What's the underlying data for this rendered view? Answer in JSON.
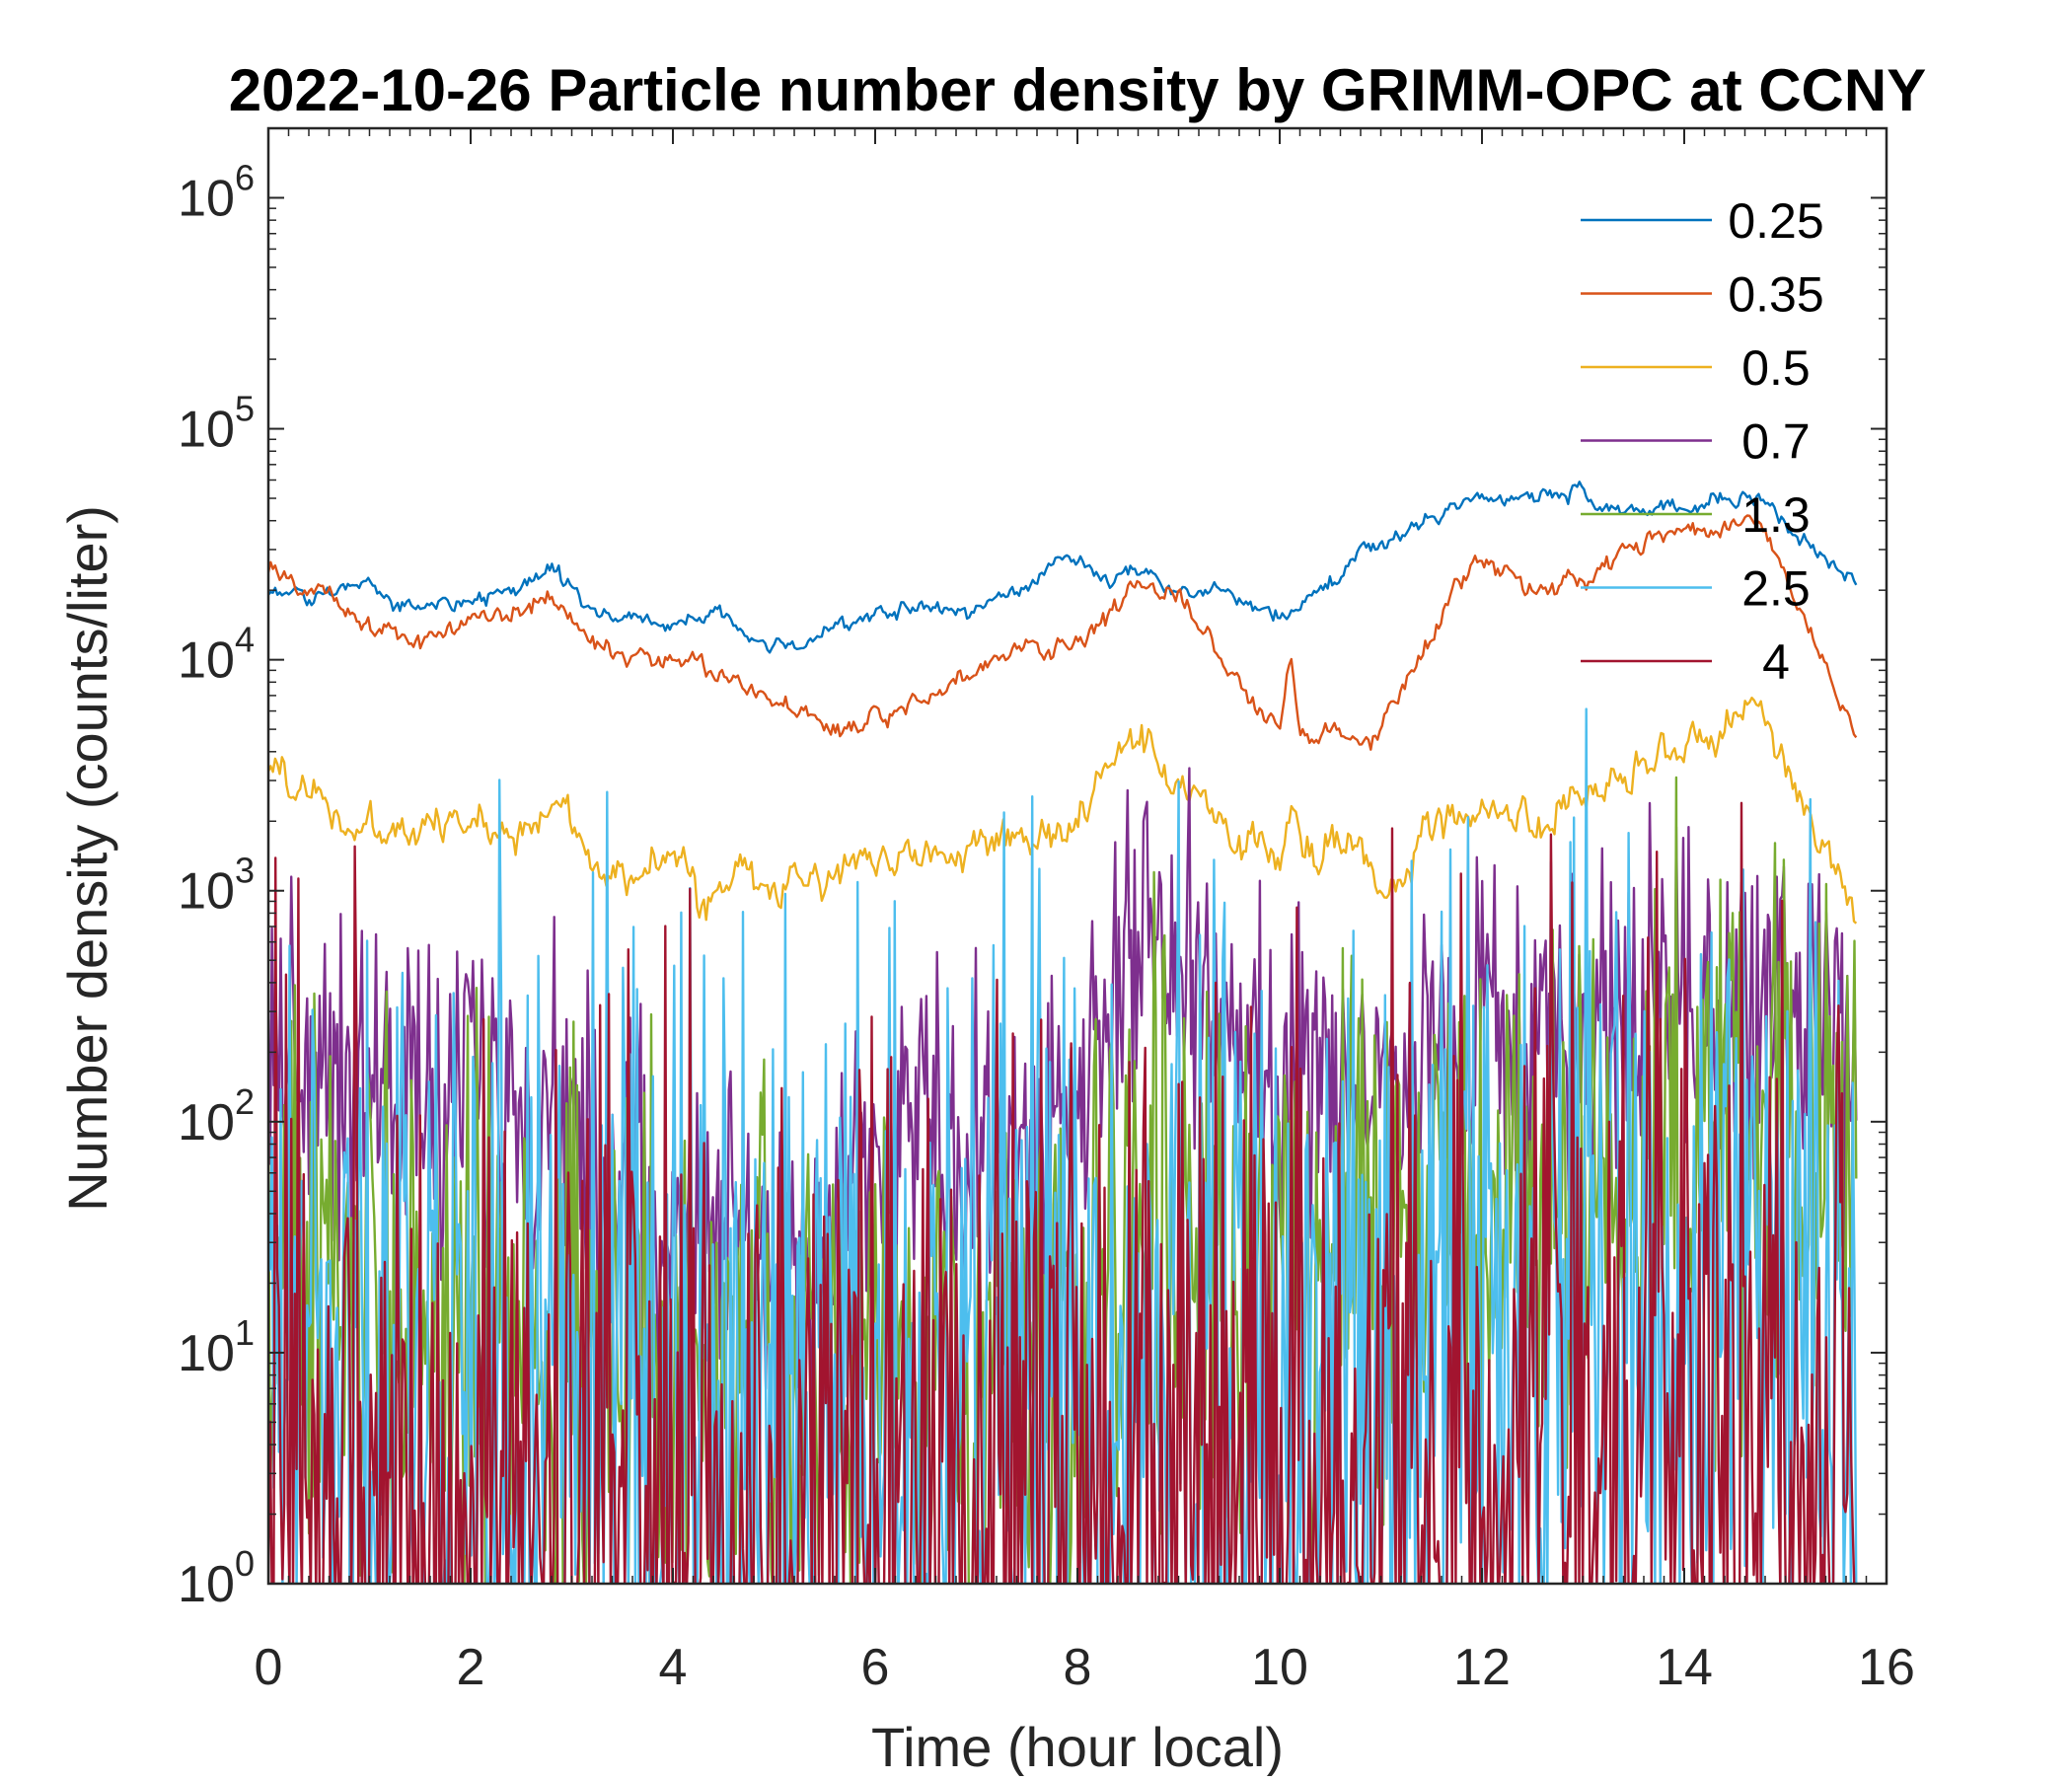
{
  "chart_data": {
    "type": "line",
    "title": "2022-10-26 Particle number density by GRIMM-OPC at CCNY",
    "xlabel": "Time (hour local)",
    "ylabel": "Number density (counts/liter)",
    "xlim": [
      0,
      16
    ],
    "ylim": [
      1,
      2000000
    ],
    "yscale": "log",
    "xticks": [
      0,
      2,
      4,
      6,
      8,
      10,
      12,
      14,
      16
    ],
    "xtick_labels": [
      "0",
      "2",
      "4",
      "6",
      "8",
      "10",
      "12",
      "14",
      "16"
    ],
    "yticks": [
      1,
      10,
      100,
      1000,
      10000,
      100000,
      1000000
    ],
    "ytick_base": "10",
    "ytick_exponents": [
      "0",
      "1",
      "2",
      "3",
      "4",
      "5",
      "6"
    ],
    "legend_position": "top-right",
    "series": [
      {
        "name": "0.25",
        "color": "#0072BD",
        "noise": 0.04,
        "points": [
          [
            0,
            20000
          ],
          [
            0.5,
            18000
          ],
          [
            0.9,
            23000
          ],
          [
            1.3,
            17000
          ],
          [
            2.0,
            18000
          ],
          [
            2.5,
            20000
          ],
          [
            2.8,
            25000
          ],
          [
            3.1,
            17000
          ],
          [
            3.6,
            15000
          ],
          [
            4.0,
            14000
          ],
          [
            4.4,
            16000
          ],
          [
            4.7,
            13000
          ],
          [
            5.0,
            11000
          ],
          [
            5.5,
            13000
          ],
          [
            6.0,
            16000
          ],
          [
            6.5,
            17000
          ],
          [
            7.0,
            16000
          ],
          [
            7.5,
            22000
          ],
          [
            7.9,
            28000
          ],
          [
            8.3,
            22000
          ],
          [
            8.7,
            24000
          ],
          [
            9.0,
            20000
          ],
          [
            9.5,
            19000
          ],
          [
            10.0,
            15000
          ],
          [
            10.3,
            18000
          ],
          [
            10.7,
            26000
          ],
          [
            11.0,
            32000
          ],
          [
            11.5,
            40000
          ],
          [
            12.0,
            50000
          ],
          [
            12.5,
            52000
          ],
          [
            13.0,
            52000
          ],
          [
            13.5,
            46000
          ],
          [
            14.0,
            45000
          ],
          [
            14.5,
            52000
          ],
          [
            14.8,
            48000
          ],
          [
            15.2,
            32000
          ],
          [
            15.7,
            21000
          ]
        ]
      },
      {
        "name": "0.35",
        "color": "#D95319",
        "noise": 0.05,
        "points": [
          [
            0,
            24000
          ],
          [
            0.5,
            20000
          ],
          [
            1.0,
            14000
          ],
          [
            1.5,
            12000
          ],
          [
            2.0,
            15000
          ],
          [
            2.5,
            16000
          ],
          [
            2.8,
            19000
          ],
          [
            3.2,
            12000
          ],
          [
            3.7,
            10000
          ],
          [
            4.0,
            11000
          ],
          [
            4.3,
            9000
          ],
          [
            4.7,
            8000
          ],
          [
            5.0,
            6500
          ],
          [
            5.6,
            5000
          ],
          [
            6.0,
            5500
          ],
          [
            6.5,
            7000
          ],
          [
            7.0,
            9000
          ],
          [
            7.5,
            12000
          ],
          [
            8.0,
            11000
          ],
          [
            8.6,
            21000
          ],
          [
            9.0,
            18000
          ],
          [
            9.5,
            9000
          ],
          [
            10.0,
            5000
          ],
          [
            10.1,
            11000
          ],
          [
            10.2,
            5000
          ],
          [
            10.6,
            5000
          ],
          [
            10.9,
            4200
          ],
          [
            11.3,
            9000
          ],
          [
            11.7,
            20000
          ],
          [
            12.0,
            28000
          ],
          [
            12.5,
            20000
          ],
          [
            13.0,
            22000
          ],
          [
            13.5,
            30000
          ],
          [
            14.0,
            36000
          ],
          [
            14.6,
            40000
          ],
          [
            14.8,
            36000
          ],
          [
            15.2,
            15000
          ],
          [
            15.7,
            4400
          ]
        ]
      },
      {
        "name": "0.5",
        "color": "#EDB120",
        "noise": 0.1,
        "points": [
          [
            0,
            3600
          ],
          [
            0.5,
            2500
          ],
          [
            1.0,
            1700
          ],
          [
            1.5,
            1800
          ],
          [
            2.0,
            2000
          ],
          [
            2.5,
            1900
          ],
          [
            2.9,
            2200
          ],
          [
            3.3,
            1400
          ],
          [
            3.7,
            1100
          ],
          [
            4.0,
            1500
          ],
          [
            4.3,
            850
          ],
          [
            4.7,
            1200
          ],
          [
            5.0,
            950
          ],
          [
            5.5,
            1200
          ],
          [
            6.0,
            1500
          ],
          [
            6.5,
            1400
          ],
          [
            7.0,
            1500
          ],
          [
            7.5,
            1700
          ],
          [
            8.0,
            1900
          ],
          [
            8.3,
            3500
          ],
          [
            8.7,
            3900
          ],
          [
            9.0,
            3000
          ],
          [
            9.5,
            1800
          ],
          [
            10.0,
            1300
          ],
          [
            10.1,
            2500
          ],
          [
            10.3,
            1500
          ],
          [
            10.8,
            1600
          ],
          [
            11.0,
            1000
          ],
          [
            11.3,
            1400
          ],
          [
            11.7,
            2300
          ],
          [
            12.0,
            2100
          ],
          [
            12.5,
            1900
          ],
          [
            13.0,
            2300
          ],
          [
            13.5,
            3000
          ],
          [
            14.0,
            4200
          ],
          [
            14.6,
            6000
          ],
          [
            14.8,
            5000
          ],
          [
            15.2,
            2500
          ],
          [
            15.7,
            800
          ]
        ]
      },
      {
        "name": "0.7",
        "color": "#7E2F8E",
        "noise": 0.35,
        "points": [
          [
            0,
            250
          ],
          [
            0.5,
            180
          ],
          [
            1.0,
            150
          ],
          [
            1.5,
            130
          ],
          [
            2.0,
            120
          ],
          [
            2.5,
            110
          ],
          [
            2.9,
            120
          ],
          [
            3.2,
            70
          ],
          [
            3.6,
            45
          ],
          [
            4.0,
            35
          ],
          [
            4.4,
            40
          ],
          [
            4.8,
            25
          ],
          [
            5.1,
            18
          ],
          [
            5.5,
            28
          ],
          [
            5.8,
            50
          ],
          [
            6.2,
            110
          ],
          [
            6.6,
            90
          ],
          [
            7.0,
            70
          ],
          [
            7.5,
            90
          ],
          [
            8.0,
            110
          ],
          [
            8.3,
            350
          ],
          [
            8.7,
            580
          ],
          [
            9.0,
            450
          ],
          [
            9.5,
            220
          ],
          [
            10.0,
            130
          ],
          [
            10.5,
            150
          ],
          [
            11.0,
            140
          ],
          [
            11.4,
            170
          ],
          [
            11.5,
            260
          ],
          [
            12.0,
            200
          ],
          [
            12.5,
            190
          ],
          [
            13.0,
            240
          ],
          [
            13.5,
            260
          ],
          [
            14.0,
            290
          ],
          [
            14.6,
            320
          ],
          [
            15.0,
            240
          ],
          [
            15.7,
            180
          ]
        ]
      },
      {
        "name": "1.3",
        "color": "#77AC30",
        "noise": 0.6,
        "points": [
          [
            0,
            20
          ],
          [
            1.0,
            18
          ],
          [
            2.0,
            14
          ],
          [
            3.0,
            10
          ],
          [
            4.0,
            8
          ],
          [
            5.0,
            7
          ],
          [
            6.0,
            9
          ],
          [
            7.0,
            8
          ],
          [
            7.9,
            10
          ],
          [
            8.3,
            30
          ],
          [
            8.7,
            50
          ],
          [
            9.0,
            40
          ],
          [
            9.5,
            25
          ],
          [
            10.0,
            22
          ],
          [
            10.5,
            30
          ],
          [
            11.0,
            30
          ],
          [
            11.4,
            38
          ],
          [
            11.6,
            45
          ],
          [
            12.0,
            42
          ],
          [
            12.5,
            45
          ],
          [
            13.0,
            55
          ],
          [
            13.5,
            60
          ],
          [
            14.0,
            65
          ],
          [
            14.5,
            70
          ],
          [
            15.0,
            75
          ],
          [
            15.7,
            70
          ]
        ]
      },
      {
        "name": "2.5",
        "color": "#4DBEEE",
        "noise": 1.0,
        "points": [
          [
            0,
            10
          ],
          [
            1.0,
            8
          ],
          [
            2.0,
            7
          ],
          [
            3.0,
            6
          ],
          [
            4.0,
            6
          ],
          [
            5.0,
            6
          ],
          [
            6.0,
            6
          ],
          [
            7.0,
            6
          ],
          [
            8.0,
            7
          ],
          [
            9.0,
            10
          ],
          [
            10.0,
            11
          ],
          [
            11.0,
            13
          ],
          [
            11.4,
            15
          ],
          [
            12.0,
            15
          ],
          [
            13.0,
            16
          ],
          [
            14.0,
            17
          ],
          [
            15.0,
            16
          ],
          [
            15.7,
            12
          ]
        ]
      },
      {
        "name": "4",
        "color": "#A2142F",
        "noise": 1.1,
        "points": [
          [
            0,
            2
          ],
          [
            2.0,
            1.4
          ],
          [
            4.0,
            1.3
          ],
          [
            6.0,
            1.2
          ],
          [
            8.0,
            1.3
          ],
          [
            8.5,
            2.2
          ],
          [
            10.0,
            2.4
          ],
          [
            11.4,
            2.5
          ],
          [
            11.5,
            4.5
          ],
          [
            13.0,
            4.5
          ],
          [
            14.0,
            5
          ],
          [
            15.0,
            4.5
          ],
          [
            15.7,
            3.5
          ]
        ]
      }
    ]
  }
}
